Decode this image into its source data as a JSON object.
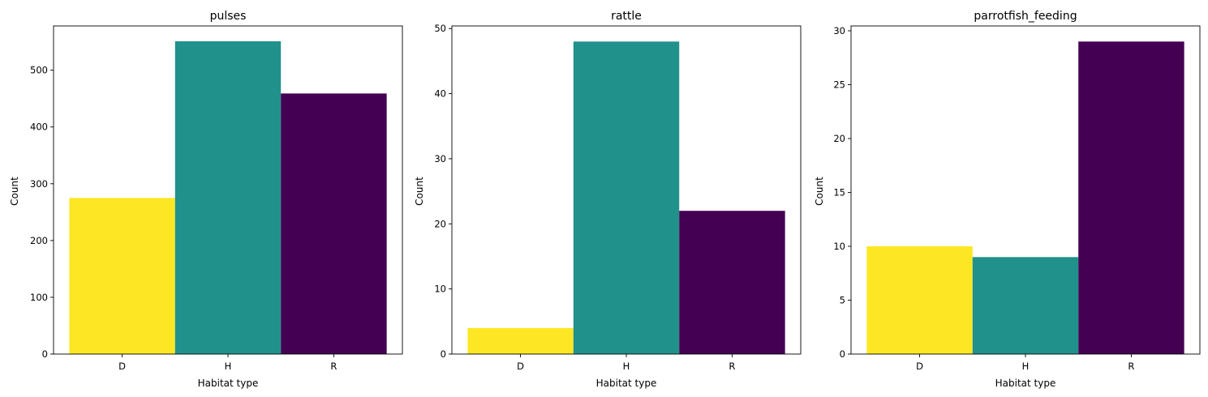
{
  "chart_data": [
    {
      "type": "bar",
      "title": "pulses",
      "xlabel": "Habitat type",
      "ylabel": "Count",
      "categories": [
        "D",
        "H",
        "R"
      ],
      "values": [
        275,
        551,
        459
      ],
      "colors": [
        "#fde725",
        "#21918c",
        "#440154"
      ],
      "ylim": [
        0,
        578
      ],
      "yticks": [
        0,
        100,
        200,
        300,
        400,
        500
      ]
    },
    {
      "type": "bar",
      "title": "rattle",
      "xlabel": "Habitat type",
      "ylabel": "Count",
      "categories": [
        "D",
        "H",
        "R"
      ],
      "values": [
        4,
        48,
        22
      ],
      "colors": [
        "#fde725",
        "#21918c",
        "#440154"
      ],
      "ylim": [
        0,
        50.4
      ],
      "yticks": [
        0,
        10,
        20,
        30,
        40,
        50
      ]
    },
    {
      "type": "bar",
      "title": "parrotfish_feeding",
      "xlabel": "Habitat type",
      "ylabel": "Count",
      "categories": [
        "D",
        "H",
        "R"
      ],
      "values": [
        10,
        9,
        29
      ],
      "colors": [
        "#fde725",
        "#21918c",
        "#440154"
      ],
      "ylim": [
        0,
        30.45
      ],
      "yticks": [
        0,
        5,
        10,
        15,
        20,
        25,
        30
      ]
    }
  ]
}
